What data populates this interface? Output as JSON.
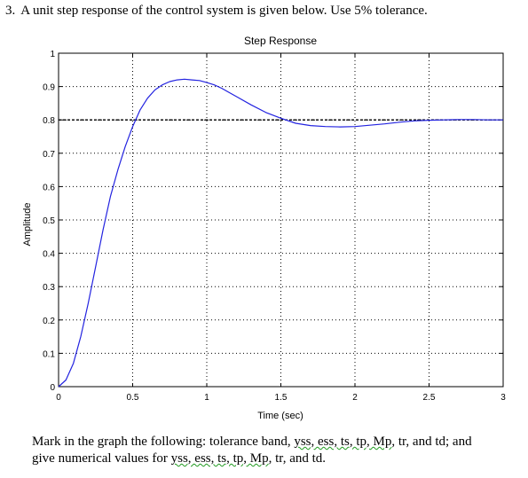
{
  "question": {
    "number": "3.",
    "text": "A unit step response of the control system is given below. Use 5% tolerance."
  },
  "footer": {
    "line1_pre": "Mark in the graph the following: tolerance band, ",
    "line1_wavy": "yss, ess, ts, tp, Mp",
    "line1_post": ", tr, and td; and",
    "line2_pre": "give numerical values for ",
    "line2_wavy": "yss, ess, ts, tp, Mp",
    "line2_post": ", tr, and td."
  },
  "colors": {
    "response_line": "#2323e0",
    "grid": "#000000",
    "wavy_underline": "#1f9a1f"
  },
  "chart_data": {
    "type": "line",
    "title": "Step Response",
    "xlabel": "Time (sec)",
    "ylabel": "Amplitude",
    "xlim": [
      0,
      3
    ],
    "ylim": [
      0,
      1
    ],
    "xticks": [
      0,
      0.5,
      1,
      1.5,
      2,
      2.5,
      3
    ],
    "xtick_labels": [
      "0",
      "0.5",
      "1",
      "1.5",
      "2",
      "2.5",
      "3"
    ],
    "yticks": [
      0,
      0.1,
      0.2,
      0.3,
      0.4,
      0.5,
      0.6,
      0.7,
      0.8,
      0.9,
      1
    ],
    "ytick_labels": [
      "0",
      "0.1",
      "0.2",
      "0.3",
      "0.4",
      "0.5",
      "0.6",
      "0.7",
      "0.8",
      "0.9",
      "1"
    ],
    "grid": true,
    "steady_state_reference": 0.8,
    "series": [
      {
        "x": [
          0,
          0.05,
          0.1,
          0.15,
          0.2,
          0.25,
          0.3,
          0.35,
          0.4,
          0.45,
          0.5,
          0.55,
          0.6,
          0.65,
          0.7,
          0.75,
          0.8,
          0.85,
          0.9,
          0.95,
          1.0,
          1.05,
          1.1,
          1.2,
          1.3,
          1.4,
          1.5,
          1.6,
          1.7,
          1.8,
          1.9,
          2.0,
          2.1,
          2.2,
          2.3,
          2.4,
          2.5,
          2.6,
          2.7,
          2.8,
          2.9,
          3.0
        ],
        "y": [
          0,
          0.02,
          0.07,
          0.15,
          0.25,
          0.36,
          0.47,
          0.57,
          0.65,
          0.72,
          0.78,
          0.83,
          0.865,
          0.89,
          0.905,
          0.915,
          0.92,
          0.922,
          0.92,
          0.918,
          0.912,
          0.905,
          0.895,
          0.87,
          0.845,
          0.822,
          0.805,
          0.79,
          0.783,
          0.78,
          0.779,
          0.78,
          0.784,
          0.788,
          0.793,
          0.797,
          0.799,
          0.8,
          0.801,
          0.801,
          0.8,
          0.8
        ]
      }
    ]
  }
}
